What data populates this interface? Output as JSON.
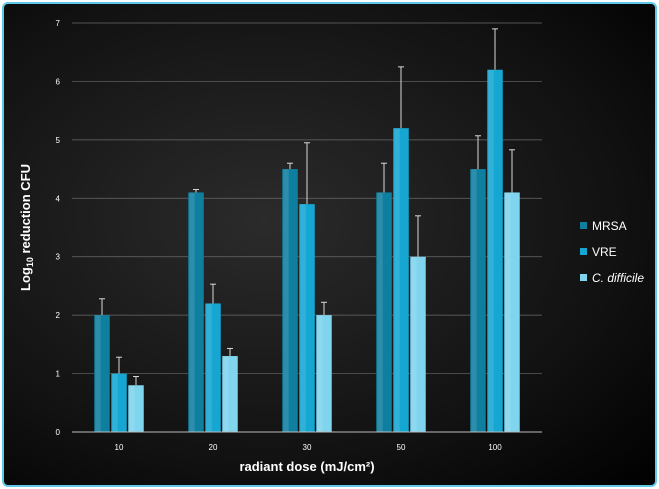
{
  "chart_data": {
    "type": "bar",
    "categories": [
      "10",
      "20",
      "30",
      "50",
      "100"
    ],
    "series": [
      {
        "name": "MRSA",
        "values": [
          2.0,
          4.1,
          4.5,
          4.1,
          4.5
        ],
        "errors": [
          0.28,
          0.05,
          0.1,
          0.5,
          0.57
        ],
        "color": "#0f7fa0"
      },
      {
        "name": "VRE",
        "values": [
          1.0,
          2.2,
          3.9,
          5.2,
          6.2
        ],
        "errors": [
          0.28,
          0.33,
          1.05,
          1.05,
          0.7
        ],
        "color": "#15a7d2"
      },
      {
        "name": "C. difficile",
        "values": [
          0.8,
          1.3,
          2.0,
          3.0,
          4.1
        ],
        "errors": [
          0.15,
          0.13,
          0.22,
          0.7,
          0.73
        ],
        "color": "#7fd4ee"
      }
    ],
    "ylim": [
      0,
      7
    ],
    "yticks": [
      "0",
      "1",
      "2",
      "3",
      "4",
      "5",
      "6",
      "7"
    ],
    "xlabel": "radiant dose (mJ/cm²)",
    "ylabel_main": "Log",
    "ylabel_sub": "10",
    "ylabel_rest": " reduction CFU",
    "legend_position": "right",
    "grid": true
  }
}
